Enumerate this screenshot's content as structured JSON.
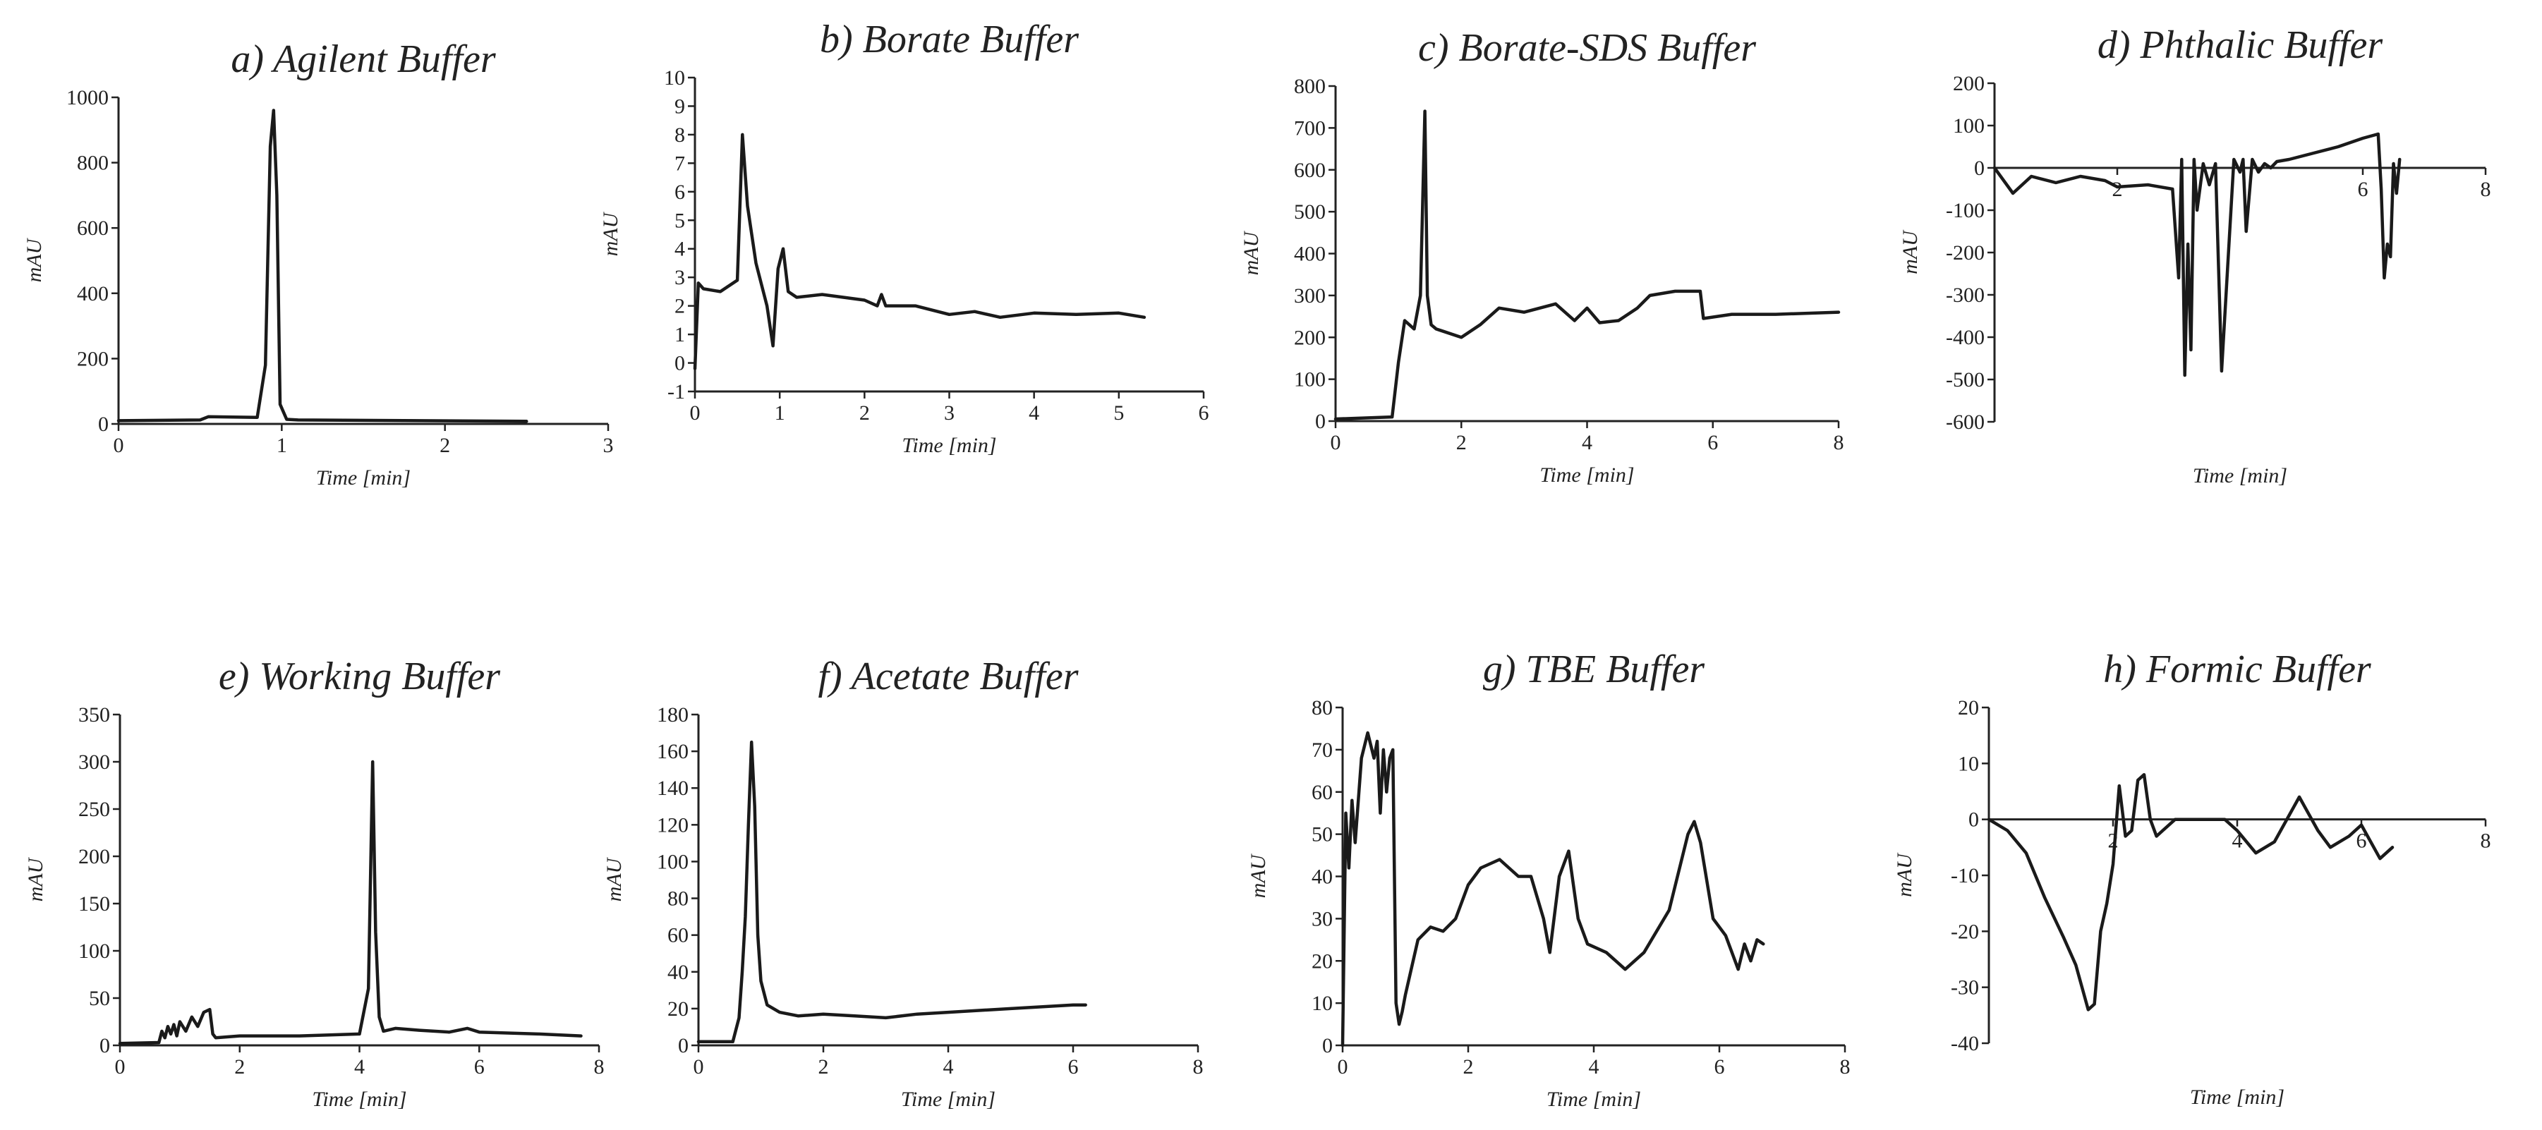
{
  "chart_data": [
    {
      "type": "line",
      "title": "a) Agilent Buffer",
      "xlabel": "Time [min]",
      "ylabel": "mAU",
      "xlim": [
        0,
        3
      ],
      "ylim": [
        0,
        1000
      ],
      "xticks": [
        0,
        1,
        2,
        3
      ],
      "yticks": [
        0,
        200,
        400,
        600,
        800,
        1000
      ],
      "x": [
        0,
        0.5,
        0.55,
        0.85,
        0.9,
        0.93,
        0.95,
        0.97,
        0.99,
        1.03,
        1.1,
        2.5
      ],
      "y": [
        10,
        12,
        22,
        20,
        180,
        850,
        960,
        700,
        60,
        14,
        12,
        8
      ]
    },
    {
      "type": "line",
      "title": "b) Borate Buffer",
      "xlabel": "Time [min]",
      "ylabel": "mAU",
      "xlim": [
        0,
        6
      ],
      "ylim": [
        -1,
        10
      ],
      "xticks": [
        0,
        1,
        2,
        3,
        4,
        5,
        6
      ],
      "yticks": [
        -1,
        0,
        1,
        2,
        3,
        4,
        5,
        6,
        7,
        8,
        9,
        10
      ],
      "x": [
        0,
        0.04,
        0.1,
        0.3,
        0.5,
        0.56,
        0.62,
        0.72,
        0.85,
        0.92,
        0.98,
        1.04,
        1.1,
        1.2,
        1.5,
        2.0,
        2.15,
        2.2,
        2.25,
        2.6,
        3.0,
        3.3,
        3.6,
        4.0,
        4.5,
        5.0,
        5.3
      ],
      "y": [
        -0.2,
        2.8,
        2.6,
        2.5,
        2.9,
        8.0,
        5.5,
        3.5,
        2.0,
        0.6,
        3.3,
        4.0,
        2.5,
        2.3,
        2.4,
        2.2,
        2.0,
        2.4,
        2.0,
        2.0,
        1.7,
        1.8,
        1.6,
        1.75,
        1.7,
        1.75,
        1.6
      ]
    },
    {
      "type": "line",
      "title": "c) Borate-SDS Buffer",
      "xlabel": "Time [min]",
      "ylabel": "mAU",
      "xlim": [
        0,
        8
      ],
      "ylim": [
        0,
        800
      ],
      "xticks": [
        0,
        2,
        4,
        6,
        8
      ],
      "yticks": [
        0,
        100,
        200,
        300,
        400,
        500,
        600,
        700,
        800
      ],
      "x": [
        0,
        0.9,
        1.0,
        1.1,
        1.25,
        1.35,
        1.42,
        1.46,
        1.52,
        1.6,
        1.7,
        2.0,
        2.3,
        2.6,
        3.0,
        3.5,
        3.8,
        4.0,
        4.2,
        4.5,
        4.8,
        5.0,
        5.4,
        5.8,
        5.85,
        6.3,
        7.0,
        8.0
      ],
      "y": [
        5,
        10,
        140,
        240,
        220,
        300,
        740,
        300,
        230,
        220,
        215,
        200,
        230,
        270,
        260,
        280,
        240,
        270,
        235,
        240,
        270,
        300,
        310,
        310,
        245,
        255,
        255,
        260
      ]
    },
    {
      "type": "line",
      "title": "d) Phthalic Buffer",
      "xlabel": "Time [min]",
      "ylabel": "mAU",
      "xlim": [
        0,
        8
      ],
      "ylim": [
        -600,
        200
      ],
      "xticks": [
        2,
        6,
        8
      ],
      "yticks": [
        -600,
        -500,
        -400,
        -300,
        -200,
        -100,
        0,
        100,
        200
      ],
      "x": [
        0,
        0.3,
        0.6,
        1.0,
        1.4,
        1.8,
        2.0,
        2.5,
        2.9,
        3.0,
        3.05,
        3.1,
        3.15,
        3.2,
        3.25,
        3.3,
        3.4,
        3.5,
        3.6,
        3.7,
        3.9,
        4.0,
        4.05,
        4.1,
        4.2,
        4.3,
        4.4,
        4.5,
        4.6,
        4.8,
        5.2,
        5.6,
        6.0,
        6.25,
        6.3,
        6.35,
        6.4,
        6.45,
        6.5,
        6.55,
        6.6
      ],
      "y": [
        0,
        -60,
        -20,
        -35,
        -20,
        -30,
        -45,
        -40,
        -50,
        -260,
        20,
        -490,
        -180,
        -430,
        20,
        -100,
        10,
        -40,
        10,
        -480,
        20,
        -10,
        20,
        -150,
        20,
        -10,
        10,
        0,
        15,
        20,
        35,
        50,
        70,
        80,
        -50,
        -260,
        -180,
        -210,
        10,
        -60,
        20
      ]
    },
    {
      "type": "line",
      "title": "e) Working Buffer",
      "xlabel": "Time [min]",
      "ylabel": "mAU",
      "xlim": [
        0,
        8
      ],
      "ylim": [
        0,
        350
      ],
      "xticks": [
        0,
        2,
        4,
        6,
        8
      ],
      "yticks": [
        0,
        50,
        100,
        150,
        200,
        250,
        300,
        350
      ],
      "x": [
        0,
        0.65,
        0.7,
        0.75,
        0.8,
        0.85,
        0.9,
        0.95,
        1.0,
        1.1,
        1.2,
        1.3,
        1.4,
        1.5,
        1.55,
        1.6,
        2.0,
        3.0,
        4.0,
        4.15,
        4.22,
        4.27,
        4.33,
        4.4,
        4.6,
        5.0,
        5.5,
        5.8,
        6.0,
        7.0,
        7.7
      ],
      "y": [
        2,
        3,
        15,
        8,
        20,
        12,
        22,
        10,
        25,
        15,
        30,
        20,
        35,
        38,
        12,
        8,
        10,
        10,
        12,
        60,
        300,
        120,
        30,
        15,
        18,
        16,
        14,
        18,
        14,
        12,
        10
      ]
    },
    {
      "type": "line",
      "title": "f) Acetate Buffer",
      "xlabel": "Time [min]",
      "ylabel": "mAU",
      "xlim": [
        0,
        8
      ],
      "ylim": [
        0,
        180
      ],
      "xticks": [
        0,
        2,
        4,
        6,
        8
      ],
      "yticks": [
        0,
        20,
        40,
        60,
        80,
        100,
        120,
        140,
        160,
        180
      ],
      "x": [
        0,
        0.55,
        0.65,
        0.7,
        0.75,
        0.8,
        0.85,
        0.9,
        0.95,
        1.0,
        1.1,
        1.3,
        1.6,
        2.0,
        2.5,
        3.0,
        3.5,
        4.0,
        5.0,
        6.0,
        6.2
      ],
      "y": [
        2,
        2,
        15,
        40,
        70,
        120,
        165,
        130,
        60,
        35,
        22,
        18,
        16,
        17,
        16,
        15,
        17,
        18,
        20,
        22,
        22
      ]
    },
    {
      "type": "line",
      "title": "g) TBE Buffer",
      "xlabel": "Time [min]",
      "ylabel": "mAU",
      "xlim": [
        0,
        8
      ],
      "ylim": [
        0,
        80
      ],
      "xticks": [
        0,
        2,
        4,
        6,
        8
      ],
      "yticks": [
        0,
        10,
        20,
        30,
        40,
        50,
        60,
        70,
        80
      ],
      "x": [
        0,
        0.05,
        0.1,
        0.15,
        0.2,
        0.3,
        0.4,
        0.5,
        0.55,
        0.6,
        0.65,
        0.7,
        0.75,
        0.8,
        0.85,
        0.9,
        0.95,
        1.0,
        1.2,
        1.4,
        1.6,
        1.8,
        2.0,
        2.2,
        2.5,
        2.8,
        3.0,
        3.2,
        3.3,
        3.45,
        3.6,
        3.75,
        3.9,
        4.2,
        4.5,
        4.8,
        5.2,
        5.5,
        5.6,
        5.7,
        5.9,
        6.0,
        6.1,
        6.3,
        6.4,
        6.5,
        6.6,
        6.7
      ],
      "y": [
        0,
        55,
        42,
        58,
        48,
        68,
        74,
        68,
        72,
        55,
        70,
        60,
        68,
        70,
        10,
        5,
        8,
        12,
        25,
        28,
        27,
        30,
        38,
        42,
        44,
        40,
        40,
        30,
        22,
        40,
        46,
        30,
        24,
        22,
        18,
        22,
        32,
        50,
        53,
        48,
        30,
        28,
        26,
        18,
        24,
        20,
        25,
        24
      ]
    },
    {
      "type": "line",
      "title": "h) Formic Buffer",
      "xlabel": "Time [min]",
      "ylabel": "mAU",
      "xlim": [
        0,
        8
      ],
      "ylim": [
        -40,
        20
      ],
      "xticks": [
        2,
        4,
        6,
        8
      ],
      "yticks": [
        -40,
        -30,
        -20,
        -10,
        0,
        10,
        20
      ],
      "x": [
        0,
        0.3,
        0.6,
        0.9,
        1.2,
        1.4,
        1.6,
        1.7,
        1.8,
        1.9,
        2.0,
        2.1,
        2.2,
        2.3,
        2.4,
        2.5,
        2.6,
        2.7,
        2.8,
        3.0,
        3.4,
        3.8,
        4.0,
        4.3,
        4.6,
        5.0,
        5.3,
        5.5,
        5.8,
        6.0,
        6.3,
        6.5
      ],
      "y": [
        0,
        -2,
        -6,
        -14,
        -21,
        -26,
        -34,
        -33,
        -20,
        -15,
        -8,
        6,
        -3,
        -2,
        7,
        8,
        0,
        -3,
        -2,
        0,
        0,
        0,
        -2,
        -6,
        -4,
        4,
        -2,
        -5,
        -3,
        -1,
        -7,
        -5
      ]
    }
  ]
}
